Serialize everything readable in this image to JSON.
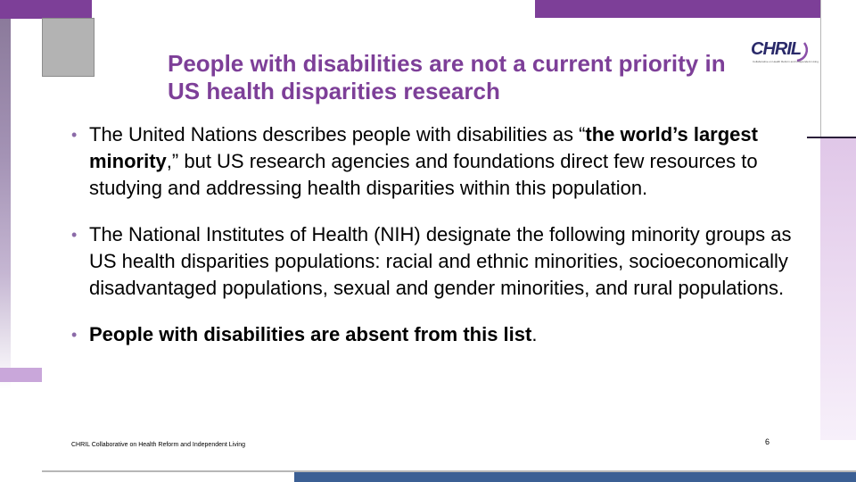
{
  "slide": {
    "title": "People with disabilities are not a current priority in US health disparities research",
    "logo": {
      "text": "CHRIL",
      "subtitle": "Collaborative on Health Reform and Independent Living"
    },
    "bullets": [
      {
        "parts": [
          {
            "text": "The United Nations describes people with disabilities as “",
            "bold": false
          },
          {
            "text": "the world’s largest minority",
            "bold": true
          },
          {
            "text": ",” but US research agencies and foundations direct few resources to studying and addressing health disparities within this population.",
            "bold": false
          }
        ]
      },
      {
        "parts": [
          {
            "text": "The National Institutes of Health (NIH) designate the following minority groups as US health disparities populations: racial and ethnic minorities, socioeconomically disadvantaged populations, sexual and gender minorities, and rural populations.",
            "bold": false
          }
        ]
      },
      {
        "parts": [
          {
            "text": "People with disabilities are absent from this list",
            "bold": true
          },
          {
            "text": ".",
            "bold": false
          }
        ]
      }
    ],
    "footer": "CHRIL Collaborative on Health Reform and Independent Living",
    "page_number": "6"
  },
  "colors": {
    "accent_purple": "#7d3f98",
    "bullet_purple": "#8b6aa8",
    "bottom_blue": "#3b5f94"
  }
}
